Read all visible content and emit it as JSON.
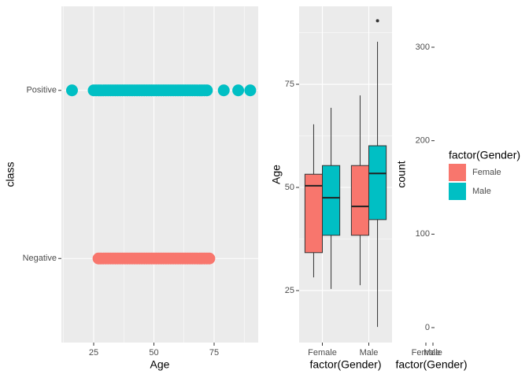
{
  "chart_data": [
    {
      "type": "scatter",
      "xlabel": "Age",
      "ylabel": "class",
      "categories": [
        "Negative",
        "Positive"
      ],
      "xlim": [
        11.6,
        93.3
      ],
      "xticks": [
        25,
        50,
        75
      ],
      "xminor_ticks": [
        12.5,
        37.5,
        62.5,
        87.5
      ],
      "grid": true,
      "series": [
        {
          "color": "#F8766D",
          "x": [
            27,
            28,
            29,
            30,
            31,
            32,
            33,
            34,
            35,
            36,
            37,
            38,
            39,
            40,
            41,
            42,
            43,
            44,
            45,
            46,
            47,
            48,
            49,
            50,
            51,
            52,
            53,
            54,
            55,
            56,
            57,
            58,
            59,
            60,
            61,
            62,
            63,
            64,
            65,
            66,
            67,
            68,
            69,
            70,
            71,
            72,
            73
          ]
        },
        {
          "color": "#00BFC4",
          "x": [
            16,
            25,
            26,
            27,
            28,
            29,
            30,
            31,
            32,
            33,
            34,
            35,
            36,
            37,
            38,
            39,
            40,
            41,
            42,
            43,
            44,
            45,
            46,
            47,
            48,
            49,
            50,
            51,
            52,
            53,
            54,
            55,
            56,
            57,
            58,
            59,
            60,
            61,
            62,
            63,
            64,
            65,
            66,
            67,
            68,
            69,
            70,
            71,
            72,
            79,
            85,
            90
          ]
        }
      ]
    },
    {
      "type": "box",
      "xlabel": "factor(Gender)",
      "ylabel": "Age",
      "categories": [
        "Female",
        "Male"
      ],
      "ylim": [
        12.4,
        93.9
      ],
      "yticks": [
        25,
        50,
        75
      ],
      "yminor_ticks": [
        37.5,
        62.5,
        87.5
      ],
      "grid": true,
      "series": [
        {
          "name": "Female",
          "color": "#F8766D",
          "boxes": [
            {
              "low": 28.2,
              "q1": 34.2,
              "median": 50.4,
              "q3": 53.2,
              "high": 65.3,
              "outliers": []
            },
            {
              "low": 26.3,
              "q1": 38.4,
              "median": 45.4,
              "q3": 55.3,
              "high": 72.3,
              "outliers": []
            }
          ]
        },
        {
          "name": "Male",
          "color": "#00BFC4",
          "boxes": [
            {
              "low": 25.4,
              "q1": 38.4,
              "median": 47.5,
              "q3": 55.3,
              "high": 69.3,
              "outliers": []
            },
            {
              "low": 16.2,
              "q1": 42.2,
              "median": 53.4,
              "q3": 60.1,
              "high": 85.3,
              "outliers": [
                90.4
              ]
            }
          ]
        }
      ]
    },
    {
      "type": "bar",
      "xlabel": "factor(Gender)",
      "ylabel": "count",
      "categories": [
        "Female",
        "Male"
      ],
      "ylim": [
        -16,
        343.8
      ],
      "yticks": [
        0,
        100,
        200,
        300
      ]
    }
  ],
  "legend": {
    "title": "factor(Gender)"
  }
}
